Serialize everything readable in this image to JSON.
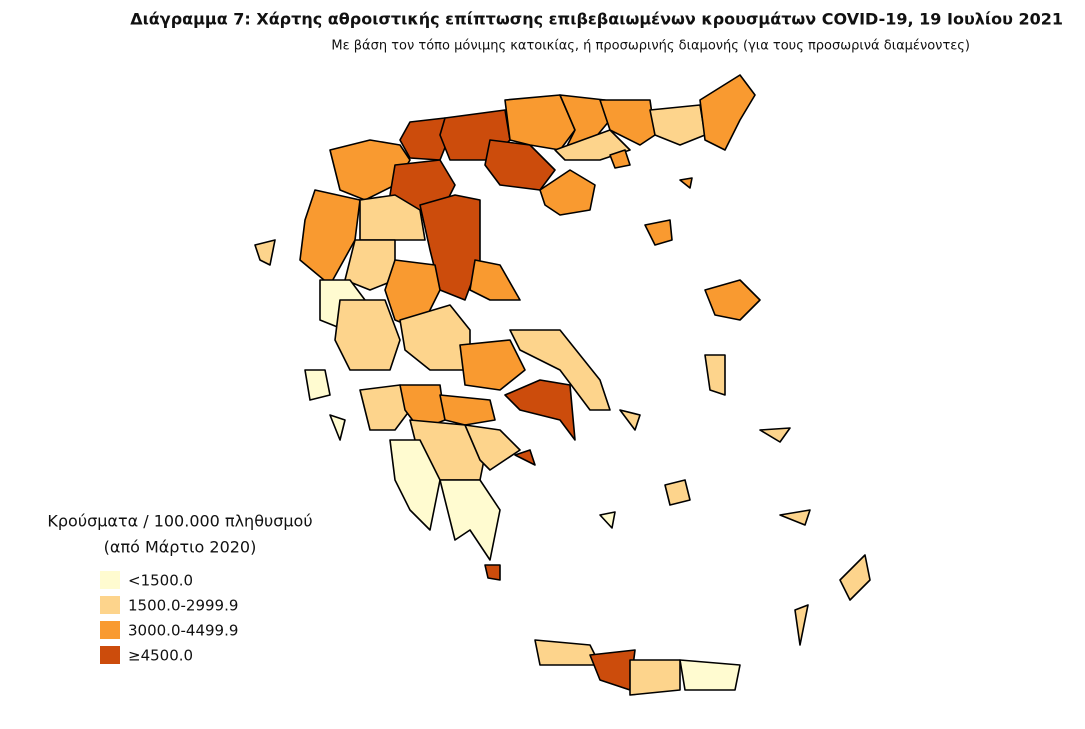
{
  "title": "Διάγραμμα 7: Χάρτης αθροιστικής επίπτωσης επιβεβαιωμένων κρουσμάτων COVID-19, 19 Ιουλίου 2021",
  "subtitle": "Με βάση τον τόπο μόνιμης κατοικίας, ή προσωρινής διαμονής (για τους προσωρινά διαμένοντες)",
  "legend": {
    "title": [
      "Κρούσματα / 100.000 πληθυσμού",
      "(από Μάρτιο 2020)"
    ],
    "items": [
      {
        "label": "<1500.0",
        "color": "#fffbd0"
      },
      {
        "label": "1500.0-2999.9",
        "color": "#fdd48c"
      },
      {
        "label": "3000.0-4499.9",
        "color": "#f99a30"
      },
      {
        "label": "≥4500.0",
        "color": "#cc4c0c"
      }
    ]
  }
}
